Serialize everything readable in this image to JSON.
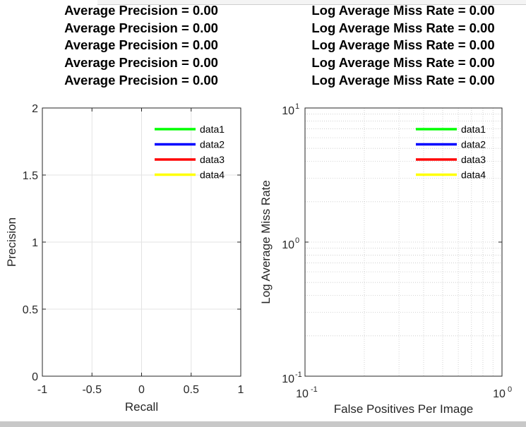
{
  "window": {
    "accent_bar_color": "#c8c8c8"
  },
  "chart_data": [
    {
      "type": "line",
      "titles": [
        "Average Precision = 0.00",
        "Average Precision = 0.00",
        "Average Precision = 0.00",
        "Average Precision = 0.00",
        "Average Precision = 0.00"
      ],
      "xlabel": "Recall",
      "ylabel": "Precision",
      "xlim": [
        -1,
        1
      ],
      "ylim": [
        0,
        2
      ],
      "x_ticks": [
        -1,
        -0.5,
        0,
        0.5,
        1
      ],
      "x_tick_labels": [
        "-1",
        "-0.5",
        "0",
        "0.5",
        "1"
      ],
      "y_ticks": [
        0,
        0.5,
        1,
        1.5,
        2
      ],
      "y_tick_labels": [
        "0",
        "0.5",
        "1",
        "1.5",
        "2"
      ],
      "grid": true,
      "legend_position": "top-right",
      "series": [
        {
          "name": "data1",
          "color": "#00ff00",
          "x": [],
          "y": []
        },
        {
          "name": "data2",
          "color": "#0000ff",
          "x": [],
          "y": []
        },
        {
          "name": "data3",
          "color": "#ff0000",
          "x": [],
          "y": []
        },
        {
          "name": "data4",
          "color": "#ffff00",
          "x": [],
          "y": []
        }
      ]
    },
    {
      "type": "line",
      "titles": [
        "Log Average Miss Rate = 0.00",
        "Log Average Miss Rate = 0.00",
        "Log Average Miss Rate = 0.00",
        "Log Average Miss Rate = 0.00",
        "Log Average Miss Rate = 0.00"
      ],
      "xlabel": "False Positives Per Image",
      "ylabel": "Log Average Miss Rate",
      "x_scale": "log",
      "y_scale": "log",
      "xlim": [
        0.1,
        1
      ],
      "ylim": [
        0.1,
        10
      ],
      "x_ticks": [
        0.1,
        1
      ],
      "x_tick_labels": [
        {
          "base": "10",
          "exp": "-1"
        },
        {
          "base": "10",
          "exp": "0"
        }
      ],
      "y_ticks": [
        0.1,
        1,
        10
      ],
      "y_tick_labels": [
        {
          "base": "10",
          "exp": "-1"
        },
        {
          "base": "10",
          "exp": "0"
        },
        {
          "base": "10",
          "exp": "1"
        }
      ],
      "grid": "major and minor (dotted)",
      "legend_position": "top-right",
      "series": [
        {
          "name": "data1",
          "color": "#00ff00",
          "x": [],
          "y": []
        },
        {
          "name": "data2",
          "color": "#0000ff",
          "x": [],
          "y": []
        },
        {
          "name": "data3",
          "color": "#ff0000",
          "x": [],
          "y": []
        },
        {
          "name": "data4",
          "color": "#ffff00",
          "x": [],
          "y": []
        }
      ]
    }
  ]
}
